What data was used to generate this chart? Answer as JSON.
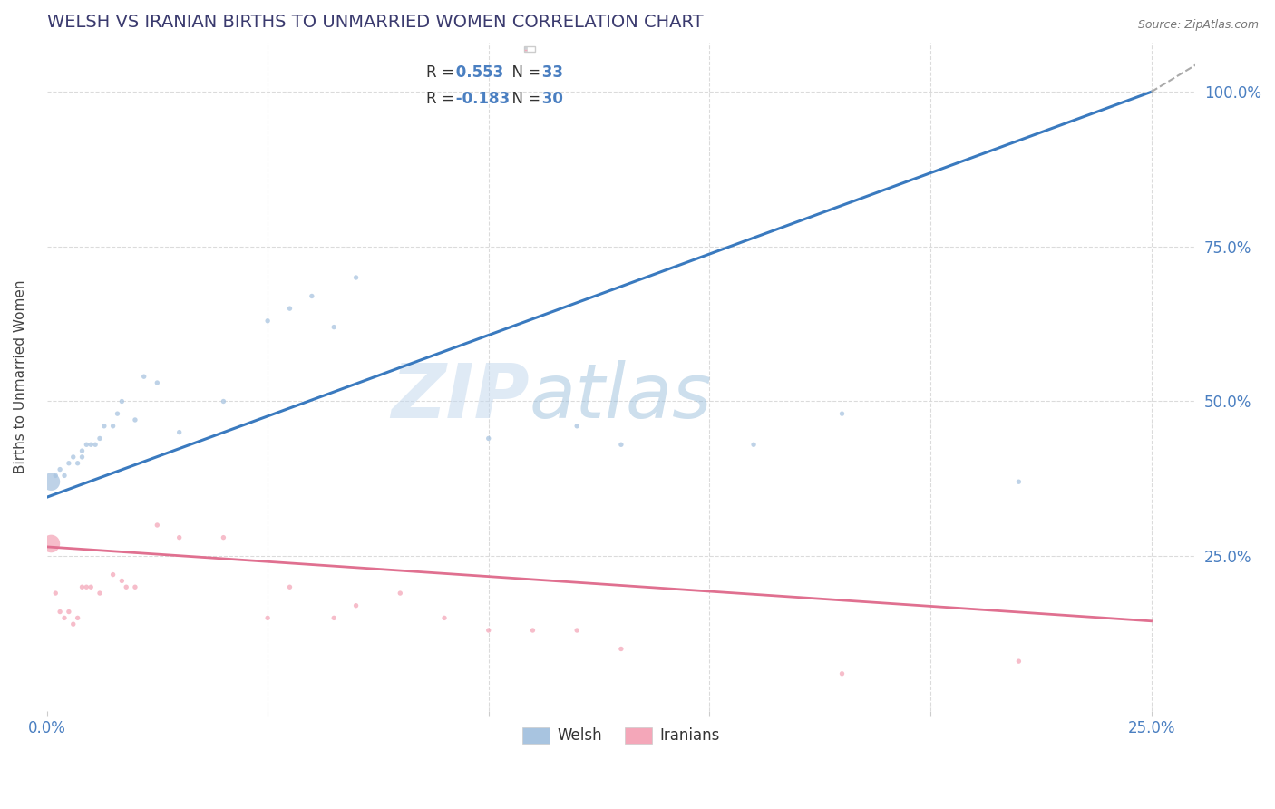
{
  "title": "WELSH VS IRANIAN BIRTHS TO UNMARRIED WOMEN CORRELATION CHART",
  "source": "Source: ZipAtlas.com",
  "ylabel": "Births to Unmarried Women",
  "right_yticks": [
    "25.0%",
    "50.0%",
    "75.0%",
    "100.0%"
  ],
  "right_ytick_vals": [
    0.25,
    0.5,
    0.75,
    1.0
  ],
  "xmin": 0.0,
  "xmax": 0.25,
  "ymin": 0.0,
  "ymax": 1.08,
  "legend_welsh_R": "0.553",
  "legend_welsh_N": "33",
  "legend_iranian_R": "-0.183",
  "legend_iranian_N": "30",
  "welsh_color": "#a8c4e0",
  "iranian_color": "#f4a7b9",
  "welsh_line_color": "#3a7abf",
  "iranian_line_color": "#e07090",
  "title_color": "#3a3a6e",
  "source_color": "#777777",
  "watermark_zip": "ZIP",
  "watermark_atlas": "atlas",
  "blue_text_color": "#4a7fc1",
  "welsh_scatter_x": [
    0.001,
    0.002,
    0.003,
    0.004,
    0.005,
    0.006,
    0.007,
    0.008,
    0.008,
    0.009,
    0.01,
    0.011,
    0.012,
    0.013,
    0.015,
    0.016,
    0.017,
    0.02,
    0.022,
    0.025,
    0.03,
    0.04,
    0.05,
    0.055,
    0.06,
    0.065,
    0.07,
    0.1,
    0.12,
    0.13,
    0.16,
    0.18,
    0.22
  ],
  "welsh_scatter_y": [
    0.37,
    0.38,
    0.39,
    0.38,
    0.4,
    0.41,
    0.4,
    0.41,
    0.42,
    0.43,
    0.43,
    0.43,
    0.44,
    0.46,
    0.46,
    0.48,
    0.5,
    0.47,
    0.54,
    0.53,
    0.45,
    0.5,
    0.63,
    0.65,
    0.67,
    0.62,
    0.7,
    0.44,
    0.46,
    0.43,
    0.43,
    0.48,
    0.37
  ],
  "welsh_scatter_size": [
    200,
    15,
    15,
    15,
    15,
    15,
    15,
    15,
    15,
    15,
    15,
    15,
    15,
    15,
    15,
    15,
    15,
    15,
    15,
    15,
    15,
    15,
    15,
    15,
    15,
    15,
    15,
    15,
    15,
    15,
    15,
    15,
    15
  ],
  "welsh_large_idx": 0,
  "iranian_scatter_x": [
    0.001,
    0.002,
    0.003,
    0.004,
    0.005,
    0.006,
    0.007,
    0.008,
    0.009,
    0.01,
    0.012,
    0.015,
    0.017,
    0.018,
    0.02,
    0.025,
    0.03,
    0.04,
    0.05,
    0.055,
    0.065,
    0.07,
    0.08,
    0.09,
    0.1,
    0.11,
    0.12,
    0.13,
    0.18,
    0.22
  ],
  "iranian_scatter_y": [
    0.27,
    0.19,
    0.16,
    0.15,
    0.16,
    0.14,
    0.15,
    0.2,
    0.2,
    0.2,
    0.19,
    0.22,
    0.21,
    0.2,
    0.2,
    0.3,
    0.28,
    0.28,
    0.15,
    0.2,
    0.15,
    0.17,
    0.19,
    0.15,
    0.13,
    0.13,
    0.13,
    0.1,
    0.06,
    0.08
  ],
  "iranian_scatter_size": [
    200,
    15,
    15,
    15,
    15,
    15,
    15,
    15,
    15,
    15,
    15,
    15,
    15,
    15,
    15,
    15,
    15,
    15,
    15,
    15,
    15,
    15,
    15,
    15,
    15,
    15,
    15,
    15,
    15,
    15
  ],
  "background_color": "#ffffff",
  "grid_color": "#d8d8d8",
  "grid_style": "--"
}
